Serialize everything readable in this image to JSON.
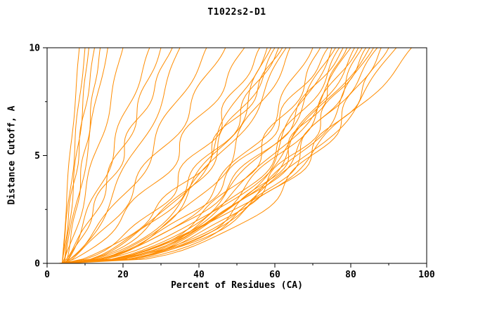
{
  "chart_data": {
    "type": "line",
    "title": "T1022s2-D1",
    "xlabel": "Percent of Residues (CA)",
    "ylabel": "Distance Cutoff, A",
    "xlim": [
      0,
      100
    ],
    "ylim": [
      0,
      10
    ],
    "x_ticks": [
      0,
      20,
      40,
      60,
      80,
      100
    ],
    "x_tick_labels": [
      "0",
      "20",
      "40",
      "60",
      "80",
      "100"
    ],
    "x_minor_ticks": [
      10,
      30,
      50,
      70,
      90
    ],
    "y_ticks": [
      0,
      5,
      10
    ],
    "y_tick_labels": [
      "0",
      "5",
      "10"
    ],
    "y_minor_ticks": [
      2.5,
      7.5
    ],
    "grid": false,
    "legend": false,
    "background_color": "#ffffff",
    "frame_color": "#000000",
    "series_color": "#FF8C00",
    "series": [
      {
        "start_percent": 4.0,
        "percent_at_10A": 8.5,
        "shape": 1.1
      },
      {
        "start_percent": 4.0,
        "percent_at_10A": 10.0,
        "shape": 1.0
      },
      {
        "start_percent": 4.5,
        "percent_at_10A": 11.0,
        "shape": 0.95
      },
      {
        "start_percent": 4.0,
        "percent_at_10A": 12.5,
        "shape": 1.05
      },
      {
        "start_percent": 5.0,
        "percent_at_10A": 14.0,
        "shape": 0.9
      },
      {
        "start_percent": 4.5,
        "percent_at_10A": 16.0,
        "shape": 1.0
      },
      {
        "start_percent": 4.0,
        "percent_at_10A": 20.0,
        "shape": 0.85
      },
      {
        "start_percent": 5.0,
        "percent_at_10A": 27.0,
        "shape": 0.9
      },
      {
        "start_percent": 4.0,
        "percent_at_10A": 30.0,
        "shape": 0.8
      },
      {
        "start_percent": 5.0,
        "percent_at_10A": 33.0,
        "shape": 0.95
      },
      {
        "start_percent": 4.0,
        "percent_at_10A": 35.0,
        "shape": 0.7
      },
      {
        "start_percent": 4.0,
        "percent_at_10A": 42.0,
        "shape": 0.75
      },
      {
        "start_percent": 5.0,
        "percent_at_10A": 47.0,
        "shape": 0.8
      },
      {
        "start_percent": 4.0,
        "percent_at_10A": 52.0,
        "shape": 0.7
      },
      {
        "start_percent": 4.0,
        "percent_at_10A": 56.0,
        "shape": 0.55
      },
      {
        "start_percent": 4.5,
        "percent_at_10A": 58.0,
        "shape": 0.5
      },
      {
        "start_percent": 5.0,
        "percent_at_10A": 59.0,
        "shape": 0.45
      },
      {
        "start_percent": 4.0,
        "percent_at_10A": 60.0,
        "shape": 0.5
      },
      {
        "start_percent": 5.0,
        "percent_at_10A": 61.0,
        "shape": 0.55
      },
      {
        "start_percent": 4.0,
        "percent_at_10A": 62.0,
        "shape": 0.6
      },
      {
        "start_percent": 4.5,
        "percent_at_10A": 63.0,
        "shape": 0.5
      },
      {
        "start_percent": 5.0,
        "percent_at_10A": 64.0,
        "shape": 0.45
      },
      {
        "start_percent": 3.0,
        "percent_at_10A": 70.0,
        "shape": 0.45
      },
      {
        "start_percent": 4.0,
        "percent_at_10A": 72.0,
        "shape": 0.4
      },
      {
        "start_percent": 3.5,
        "percent_at_10A": 74.0,
        "shape": 0.5
      },
      {
        "start_percent": 4.0,
        "percent_at_10A": 75.0,
        "shape": 0.35
      },
      {
        "start_percent": 5.0,
        "percent_at_10A": 76.0,
        "shape": 0.45
      },
      {
        "start_percent": 4.0,
        "percent_at_10A": 77.0,
        "shape": 0.4
      },
      {
        "start_percent": 3.5,
        "percent_at_10A": 78.0,
        "shape": 0.5
      },
      {
        "start_percent": 4.0,
        "percent_at_10A": 79.0,
        "shape": 0.35
      },
      {
        "start_percent": 5.0,
        "percent_at_10A": 80.0,
        "shape": 0.45
      },
      {
        "start_percent": 4.0,
        "percent_at_10A": 81.0,
        "shape": 0.4
      },
      {
        "start_percent": 4.5,
        "percent_at_10A": 82.0,
        "shape": 0.45
      },
      {
        "start_percent": 4.0,
        "percent_at_10A": 83.0,
        "shape": 0.35
      },
      {
        "start_percent": 5.0,
        "percent_at_10A": 84.0,
        "shape": 0.4
      },
      {
        "start_percent": 4.0,
        "percent_at_10A": 85.0,
        "shape": 0.5
      },
      {
        "start_percent": 4.5,
        "percent_at_10A": 86.0,
        "shape": 0.4
      },
      {
        "start_percent": 4.0,
        "percent_at_10A": 87.0,
        "shape": 0.45
      },
      {
        "start_percent": 5.0,
        "percent_at_10A": 88.0,
        "shape": 0.35
      },
      {
        "start_percent": 4.0,
        "percent_at_10A": 90.0,
        "shape": 0.4
      },
      {
        "start_percent": 4.5,
        "percent_at_10A": 92.0,
        "shape": 0.45
      },
      {
        "start_percent": 4.0,
        "percent_at_10A": 96.0,
        "shape": 0.5
      }
    ]
  }
}
